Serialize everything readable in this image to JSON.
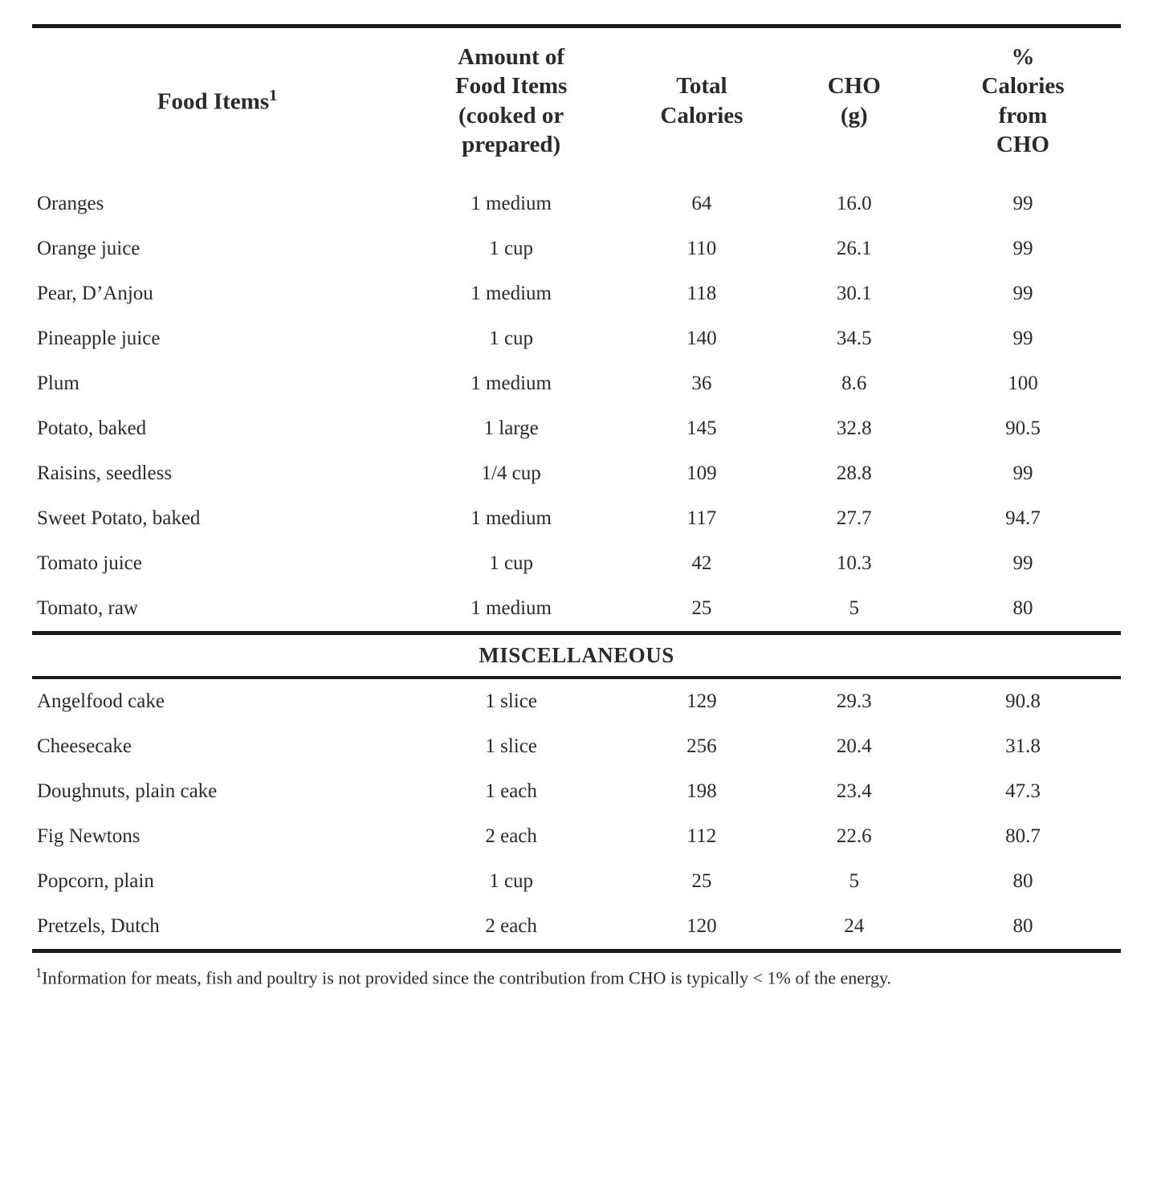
{
  "table": {
    "columns": [
      {
        "label": "Food Items",
        "sup": "1",
        "align": "center",
        "width_pct": 34
      },
      {
        "label": "Amount of Food Items (cooked or prepared)",
        "align": "center",
        "width_pct": 20
      },
      {
        "label": "Total Calories",
        "align": "center",
        "width_pct": 15
      },
      {
        "label": "CHO (g)",
        "align": "center",
        "width_pct": 13
      },
      {
        "label": "% Calories from CHO",
        "align": "center",
        "width_pct": 18
      }
    ],
    "header_fontsize": 29,
    "body_fontsize": 25,
    "rule_color": "#1c1c1c",
    "rule_width_top": 5,
    "rule_width_section": 4,
    "background_color": "#ffffff",
    "text_color": "#2a2a2a",
    "sections": [
      {
        "title": null,
        "rows": [
          {
            "name": "Oranges",
            "amount": "1 medium",
            "calories": "64",
            "cho_g": "16.0",
            "pct": "99"
          },
          {
            "name": "Orange juice",
            "amount": "1 cup",
            "calories": "110",
            "cho_g": "26.1",
            "pct": "99"
          },
          {
            "name": "Pear, D’Anjou",
            "amount": "1 medium",
            "calories": "118",
            "cho_g": "30.1",
            "pct": "99"
          },
          {
            "name": "Pineapple juice",
            "amount": "1 cup",
            "calories": "140",
            "cho_g": "34.5",
            "pct": "99"
          },
          {
            "name": "Plum",
            "amount": "1 medium",
            "calories": "36",
            "cho_g": "8.6",
            "pct": "100"
          },
          {
            "name": "Potato, baked",
            "amount": "1 large",
            "calories": "145",
            "cho_g": "32.8",
            "pct": "90.5"
          },
          {
            "name": "Raisins, seedless",
            "amount": "1/4 cup",
            "calories": "109",
            "cho_g": "28.8",
            "pct": "99"
          },
          {
            "name": "Sweet Potato, baked",
            "amount": "1 medium",
            "calories": "117",
            "cho_g": "27.7",
            "pct": "94.7"
          },
          {
            "name": "Tomato juice",
            "amount": "1 cup",
            "calories": "42",
            "cho_g": "10.3",
            "pct": "99"
          },
          {
            "name": "Tomato, raw",
            "amount": "1 medium",
            "calories": "25",
            "cho_g": "5",
            "pct": "80"
          }
        ]
      },
      {
        "title": "MISCELLANEOUS",
        "rows": [
          {
            "name": "Angelfood cake",
            "amount": "1 slice",
            "calories": "129",
            "cho_g": "29.3",
            "pct": "90.8"
          },
          {
            "name": "Cheesecake",
            "amount": "1 slice",
            "calories": "256",
            "cho_g": "20.4",
            "pct": "31.8"
          },
          {
            "name": "Doughnuts, plain cake",
            "amount": "1 each",
            "calories": "198",
            "cho_g": "23.4",
            "pct": "47.3"
          },
          {
            "name": "Fig Newtons",
            "amount": "2 each",
            "calories": "112",
            "cho_g": "22.6",
            "pct": "80.7"
          },
          {
            "name": "Popcorn, plain",
            "amount": "1 cup",
            "calories": "25",
            "cho_g": "5",
            "pct": "80"
          },
          {
            "name": "Pretzels, Dutch",
            "amount": "2 each",
            "calories": "120",
            "cho_g": "24",
            "pct": "80"
          }
        ]
      }
    ]
  },
  "footnote": {
    "marker": "1",
    "text": "Information for meats, fish and poultry is not provided since the contribution from CHO is typically < 1% of the energy."
  }
}
